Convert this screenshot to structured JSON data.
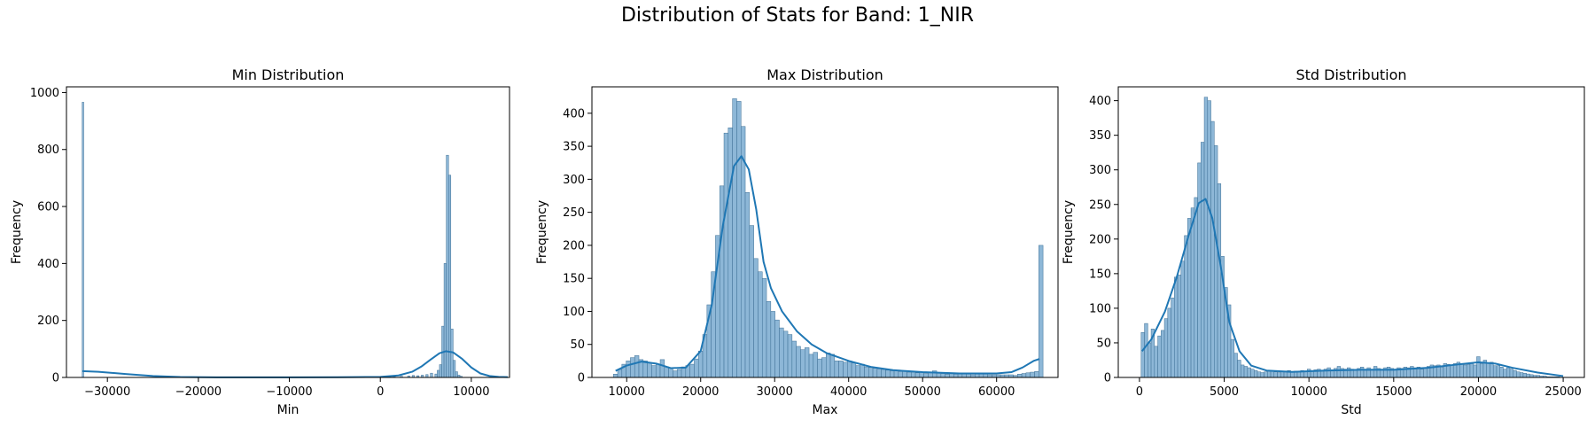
{
  "figure": {
    "title": "Distribution of Stats for Band: 1_NIR"
  },
  "colors": {
    "bar_fill": "#8db7d7",
    "bar_edge": "#3d6f95",
    "kde": "#1f77b4"
  },
  "chart_data": [
    {
      "type": "bar",
      "title": "Min Distribution",
      "xlabel": "Min",
      "ylabel": "Frequency",
      "xlim": [
        -34500,
        14200
      ],
      "ylim": [
        0,
        1020
      ],
      "xticks": [
        -30000,
        -20000,
        -10000,
        0,
        10000
      ],
      "xtick_labels": [
        "−30000",
        "−20000",
        "−10000",
        "0",
        "10000"
      ],
      "yticks": [
        0,
        200,
        400,
        600,
        800,
        1000
      ],
      "ytick_labels": [
        "0",
        "200",
        "400",
        "600",
        "800",
        "1000"
      ],
      "bins": [
        [
          -32768,
          -32600,
          966
        ],
        [
          600,
          850,
          3
        ],
        [
          1400,
          1650,
          3
        ],
        [
          2200,
          2450,
          4
        ],
        [
          3000,
          3250,
          5
        ],
        [
          3500,
          3750,
          7
        ],
        [
          4000,
          4250,
          6
        ],
        [
          4500,
          4750,
          8
        ],
        [
          5000,
          5250,
          10
        ],
        [
          5500,
          5750,
          15
        ],
        [
          6000,
          6250,
          12
        ],
        [
          6250,
          6500,
          25
        ],
        [
          6500,
          6750,
          45
        ],
        [
          6750,
          7000,
          180
        ],
        [
          7000,
          7250,
          400
        ],
        [
          7250,
          7500,
          780
        ],
        [
          7500,
          7750,
          710
        ],
        [
          7750,
          8000,
          170
        ],
        [
          8000,
          8250,
          60
        ],
        [
          8250,
          8500,
          20
        ],
        [
          8500,
          8750,
          8
        ],
        [
          8750,
          9000,
          4
        ]
      ],
      "kde": [
        [
          -32768,
          22
        ],
        [
          -31000,
          20
        ],
        [
          -28000,
          12
        ],
        [
          -25000,
          5
        ],
        [
          -22000,
          1.5
        ],
        [
          -18000,
          0.5
        ],
        [
          -10000,
          0.5
        ],
        [
          -3000,
          1
        ],
        [
          0,
          2
        ],
        [
          2000,
          7
        ],
        [
          3500,
          20
        ],
        [
          4500,
          38
        ],
        [
          5500,
          62
        ],
        [
          6500,
          85
        ],
        [
          7200,
          92
        ],
        [
          8000,
          88
        ],
        [
          9000,
          65
        ],
        [
          10000,
          35
        ],
        [
          11000,
          14
        ],
        [
          12000,
          5
        ],
        [
          13000,
          2
        ],
        [
          14000,
          1
        ]
      ]
    },
    {
      "type": "bar",
      "title": "Max Distribution",
      "xlabel": "Max",
      "ylabel": "Frequency",
      "xlim": [
        5300,
        68300
      ],
      "ylim": [
        0,
        440
      ],
      "xticks": [
        10000,
        20000,
        30000,
        40000,
        50000,
        60000
      ],
      "xtick_labels": [
        "10000",
        "20000",
        "30000",
        "40000",
        "50000",
        "60000"
      ],
      "yticks": [
        0,
        50,
        100,
        150,
        200,
        250,
        300,
        350,
        400
      ],
      "ytick_labels": [
        "0",
        "50",
        "100",
        "150",
        "200",
        "250",
        "300",
        "350",
        "400"
      ],
      "hist": {
        "start": 8200,
        "width": 575,
        "bars": [
          5,
          12,
          20,
          25,
          30,
          33,
          27,
          25,
          22,
          18,
          20,
          27,
          16,
          14,
          10,
          12,
          16,
          18,
          20,
          28,
          40,
          65,
          110,
          160,
          215,
          290,
          370,
          378,
          422,
          418,
          380,
          280,
          230,
          180,
          160,
          150,
          115,
          100,
          87,
          75,
          70,
          65,
          55,
          47,
          42,
          45,
          35,
          38,
          28,
          30,
          37,
          35,
          25,
          25,
          23,
          25,
          22,
          18,
          20,
          16,
          15,
          14,
          13,
          12,
          11,
          10,
          10,
          9,
          9,
          8,
          8,
          7,
          8,
          6,
          7,
          10,
          7,
          6,
          5,
          6,
          5,
          6,
          6,
          5,
          4,
          5,
          6,
          5,
          4,
          4,
          4,
          4,
          4,
          4,
          3,
          5,
          6,
          7,
          8,
          9,
          200
        ]
      },
      "kde": [
        [
          8500,
          10
        ],
        [
          10000,
          18
        ],
        [
          12000,
          24
        ],
        [
          14000,
          21
        ],
        [
          16000,
          14
        ],
        [
          18000,
          15
        ],
        [
          20000,
          40
        ],
        [
          21500,
          110
        ],
        [
          23000,
          230
        ],
        [
          24500,
          320
        ],
        [
          25500,
          335
        ],
        [
          26500,
          315
        ],
        [
          27500,
          255
        ],
        [
          28500,
          175
        ],
        [
          29500,
          135
        ],
        [
          31000,
          100
        ],
        [
          33000,
          70
        ],
        [
          35000,
          50
        ],
        [
          37000,
          37
        ],
        [
          40000,
          25
        ],
        [
          43000,
          16
        ],
        [
          46000,
          11
        ],
        [
          50000,
          8
        ],
        [
          55000,
          6
        ],
        [
          60000,
          6
        ],
        [
          62000,
          8
        ],
        [
          63500,
          15
        ],
        [
          65000,
          25
        ],
        [
          65800,
          28
        ]
      ]
    },
    {
      "type": "bar",
      "title": "Std Distribution",
      "xlabel": "Std",
      "ylabel": "Frequency",
      "xlim": [
        -1250,
        26250
      ],
      "ylim": [
        0,
        420
      ],
      "xticks": [
        0,
        5000,
        10000,
        15000,
        20000,
        25000
      ],
      "xtick_labels": [
        "0",
        "5000",
        "10000",
        "15000",
        "20000",
        "25000"
      ],
      "yticks": [
        0,
        50,
        100,
        150,
        200,
        250,
        300,
        350,
        400
      ],
      "ytick_labels": [
        "0",
        "50",
        "100",
        "150",
        "200",
        "250",
        "300",
        "350",
        "400"
      ],
      "hist": {
        "start": 100,
        "width": 196,
        "bars": [
          65,
          78,
          50,
          70,
          45,
          60,
          68,
          85,
          100,
          115,
          145,
          148,
          168,
          205,
          230,
          245,
          260,
          310,
          340,
          405,
          400,
          370,
          335,
          280,
          175,
          130,
          105,
          55,
          35,
          25,
          18,
          16,
          14,
          12,
          10,
          8,
          7,
          8,
          10,
          9,
          8,
          7,
          8,
          8,
          10,
          8,
          9,
          8,
          10,
          9,
          12,
          10,
          11,
          12,
          10,
          12,
          14,
          11,
          13,
          16,
          13,
          12,
          14,
          12,
          11,
          13,
          15,
          12,
          14,
          12,
          16,
          13,
          12,
          14,
          15,
          13,
          12,
          14,
          13,
          15,
          14,
          16,
          14,
          15,
          12,
          14,
          16,
          18,
          17,
          18,
          15,
          20,
          19,
          18,
          20,
          22,
          20,
          18,
          19,
          20,
          18,
          30,
          20,
          25,
          21,
          22,
          17,
          17,
          15,
          12,
          14,
          12,
          10,
          8,
          7,
          6,
          5,
          4,
          3,
          3,
          2,
          2,
          1,
          1,
          1,
          1
        ]
      },
      "kde": [
        [
          150,
          38
        ],
        [
          700,
          55
        ],
        [
          1500,
          95
        ],
        [
          2200,
          145
        ],
        [
          2900,
          205
        ],
        [
          3500,
          252
        ],
        [
          3900,
          258
        ],
        [
          4300,
          230
        ],
        [
          4800,
          160
        ],
        [
          5300,
          80
        ],
        [
          5900,
          38
        ],
        [
          6600,
          17
        ],
        [
          7500,
          10
        ],
        [
          9000,
          8
        ],
        [
          11000,
          10
        ],
        [
          13000,
          11
        ],
        [
          15000,
          11
        ],
        [
          17000,
          14
        ],
        [
          18500,
          18
        ],
        [
          20000,
          22
        ],
        [
          21000,
          20
        ],
        [
          22000,
          14
        ],
        [
          23500,
          7
        ],
        [
          25000,
          2
        ]
      ]
    }
  ]
}
